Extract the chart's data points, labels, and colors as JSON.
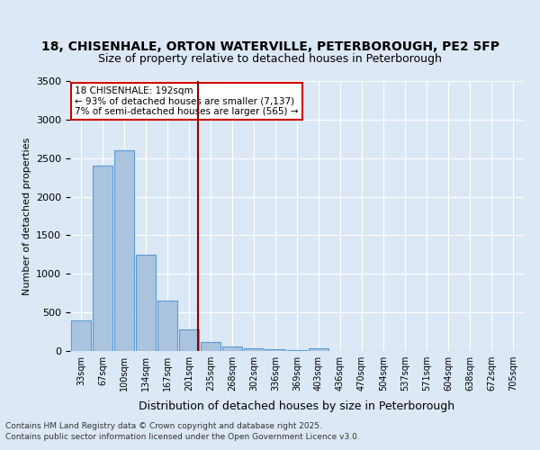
{
  "title1": "18, CHISENHALE, ORTON WATERVILLE, PETERBOROUGH, PE2 5FP",
  "title2": "Size of property relative to detached houses in Peterborough",
  "xlabel": "Distribution of detached houses by size in Peterborough",
  "ylabel": "Number of detached properties",
  "bins": [
    "33sqm",
    "67sqm",
    "100sqm",
    "134sqm",
    "167sqm",
    "201sqm",
    "235sqm",
    "268sqm",
    "302sqm",
    "336sqm",
    "369sqm",
    "403sqm",
    "436sqm",
    "470sqm",
    "504sqm",
    "537sqm",
    "571sqm",
    "604sqm",
    "638sqm",
    "672sqm",
    "705sqm"
  ],
  "values": [
    400,
    2400,
    2600,
    1250,
    650,
    280,
    120,
    60,
    40,
    20,
    10,
    40,
    0,
    0,
    0,
    0,
    0,
    0,
    0,
    0,
    0
  ],
  "bar_color": "#aac4e0",
  "bar_edge_color": "#5b9bd5",
  "vline_x": 5.4,
  "vline_color": "#8b0000",
  "annotation_text": "18 CHISENHALE: 192sqm\n← 93% of detached houses are smaller (7,137)\n7% of semi-detached houses are larger (565) →",
  "annotation_box_color": "#ffffff",
  "annotation_box_edge": "#cc0000",
  "ylim": [
    0,
    3500
  ],
  "footer1": "Contains HM Land Registry data © Crown copyright and database right 2025.",
  "footer2": "Contains public sector information licensed under the Open Government Licence v3.0.",
  "background_color": "#dce8f5",
  "plot_bg_color": "#dce8f5",
  "title_fontsize": 10,
  "subtitle_fontsize": 9
}
